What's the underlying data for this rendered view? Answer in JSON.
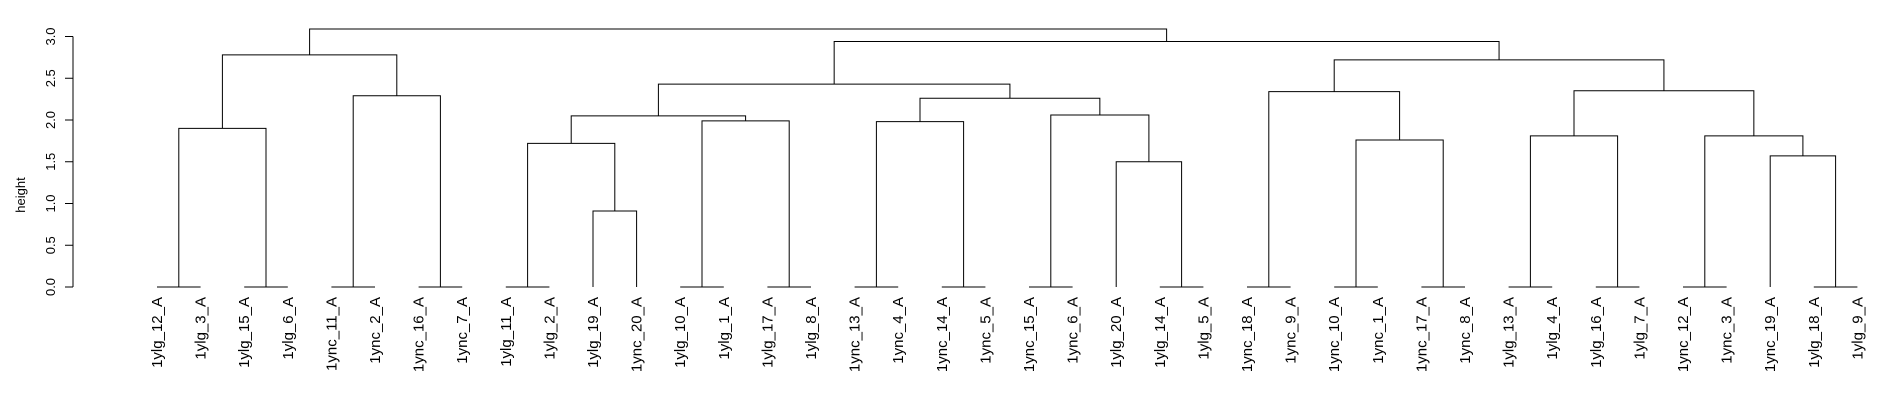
{
  "chart_data": {
    "type": "dendrogram",
    "title": "",
    "xlabel": "",
    "ylabel": "height",
    "ylim": [
      0,
      3.25
    ],
    "yticks": [
      0.0,
      0.5,
      1.0,
      1.5,
      2.0,
      2.5,
      3.0
    ],
    "ytick_labels": [
      "0.0",
      "0.5",
      "1.0",
      "1.5",
      "2.0",
      "2.5",
      "3.0"
    ],
    "grid": false,
    "leaves": [
      "1ylg_12_A",
      "1ylg_3_A",
      "1ylg_15_A",
      "1ylg_6_A",
      "1ync_11_A",
      "1ync_2_A",
      "1ync_16_A",
      "1ync_7_A",
      "1ylg_11_A",
      "1ylg_2_A",
      "1ylg_19_A",
      "1ync_20_A",
      "1ylg_10_A",
      "1ylg_1_A",
      "1ylg_17_A",
      "1ylg_8_A",
      "1ync_13_A",
      "1ync_4_A",
      "1ync_14_A",
      "1ync_5_A",
      "1ync_15_A",
      "1ync_6_A",
      "1ylg_20_A",
      "1ylg_14_A",
      "1ylg_5_A",
      "1ync_18_A",
      "1ync_9_A",
      "1ync_10_A",
      "1ync_1_A",
      "1ync_17_A",
      "1ync_8_A",
      "1ylg_13_A",
      "1ylg_4_A",
      "1ylg_16_A",
      "1ylg_7_A",
      "1ync_12_A",
      "1ync_3_A",
      "1ync_19_A",
      "1ylg_18_A",
      "1ylg_9_A"
    ],
    "merges": [
      {
        "a": "L0",
        "b": "L1",
        "height": 0.0
      },
      {
        "a": "L2",
        "b": "L3",
        "height": 0.0
      },
      {
        "a": "L4",
        "b": "L5",
        "height": 0.0
      },
      {
        "a": "L6",
        "b": "L7",
        "height": 0.0
      },
      {
        "a": "L8",
        "b": "L9",
        "height": 0.0
      },
      {
        "a": "L12",
        "b": "L13",
        "height": 0.0
      },
      {
        "a": "L14",
        "b": "L15",
        "height": 0.0
      },
      {
        "a": "L16",
        "b": "L17",
        "height": 0.0
      },
      {
        "a": "L18",
        "b": "L19",
        "height": 0.0
      },
      {
        "a": "L20",
        "b": "L21",
        "height": 0.0
      },
      {
        "a": "L23",
        "b": "L24",
        "height": 0.0
      },
      {
        "a": "L25",
        "b": "L26",
        "height": 0.0
      },
      {
        "a": "L27",
        "b": "L28",
        "height": 0.0
      },
      {
        "a": "L29",
        "b": "L30",
        "height": 0.0
      },
      {
        "a": "L31",
        "b": "L32",
        "height": 0.0
      },
      {
        "a": "L33",
        "b": "L34",
        "height": 0.0
      },
      {
        "a": "L35",
        "b": "L36",
        "height": 0.0
      },
      {
        "a": "L38",
        "b": "L39",
        "height": 0.0
      },
      {
        "a": "L10",
        "b": "L11",
        "height": 0.91
      },
      {
        "a": "L22",
        "b": "M10",
        "height": 1.5
      },
      {
        "a": "L37",
        "b": "M17",
        "height": 1.57
      },
      {
        "a": "M4",
        "b": "M18",
        "height": 1.72
      },
      {
        "a": "M12",
        "b": "M13",
        "height": 1.76
      },
      {
        "a": "M14",
        "b": "M15",
        "height": 1.81
      },
      {
        "a": "M16",
        "b": "M20",
        "height": 1.81
      },
      {
        "a": "M0",
        "b": "M1",
        "height": 1.9
      },
      {
        "a": "M7",
        "b": "M8",
        "height": 1.98
      },
      {
        "a": "M5",
        "b": "M6",
        "height": 1.99
      },
      {
        "a": "M21",
        "b": "M27",
        "height": 2.05
      },
      {
        "a": "M9",
        "b": "M19",
        "height": 2.06
      },
      {
        "a": "M2",
        "b": "M3",
        "height": 2.29
      },
      {
        "a": "M11",
        "b": "M22",
        "height": 2.34
      },
      {
        "a": "M23",
        "b": "M24",
        "height": 2.35
      },
      {
        "a": "M26",
        "b": "M29",
        "height": 2.26
      },
      {
        "a": "M28",
        "b": "M33",
        "height": 2.43
      },
      {
        "a": "M31",
        "b": "M32",
        "height": 2.72
      },
      {
        "a": "M25",
        "b": "M30",
        "height": 2.78
      },
      {
        "a": "M34",
        "b": "M35",
        "height": 2.94
      },
      {
        "a": "M36",
        "b": "M37",
        "height": 3.09
      }
    ]
  }
}
